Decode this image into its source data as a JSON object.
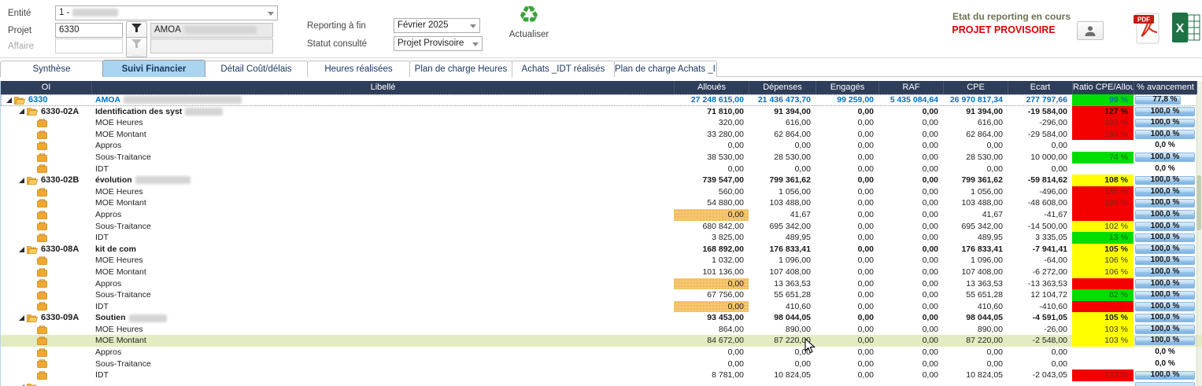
{
  "topbar": {
    "entite_label": "Entité",
    "entite_value": "1 -",
    "projet_label": "Projet",
    "projet_value": "6330",
    "projet_name": "AMOA",
    "affaire_label": "Affaire",
    "reporting_label": "Reporting à fin",
    "reporting_value": "Février 2025",
    "statut_label": "Statut consulté",
    "statut_value": "Projet Provisoire",
    "refresh_label": "Actualiser",
    "status_title": "Etat du reporting en cours",
    "status_value": "PROJET PROVISOIRE",
    "pdf_icon_label": "PDF",
    "excel_icon_label": "X"
  },
  "tabs": [
    {
      "label": "Synthèse",
      "active": false
    },
    {
      "label": "Suivi Financier",
      "active": true
    },
    {
      "label": "Détail Coût/délais",
      "active": false
    },
    {
      "label": "Heures réalisées",
      "active": false
    },
    {
      "label": "Plan de charge Heures",
      "active": false
    },
    {
      "label": "Achats _IDT réalisés",
      "active": false
    },
    {
      "label": "Plan de charge Achats _IDT",
      "active": false
    }
  ],
  "table": {
    "columns": [
      "OI",
      "Libellé",
      "Alloués",
      "Dépenses",
      "Engagés",
      "RAF",
      "CPE",
      "Ecart",
      "Ratio CPE/Alloué",
      "% avancement"
    ],
    "rows": [
      {
        "level": "root",
        "oi": "6330",
        "label": "AMOA",
        "blur": 150,
        "values": [
          "27 248 615,00",
          "21 436 473,70",
          "99 259,00",
          "5 435 084,64",
          "26 970 817,34",
          "277 797,66"
        ],
        "orange": false,
        "ratio": "99 %",
        "ratio_bg": "green",
        "av": "77,8 %",
        "av_pct": 77.8,
        "highlight": false
      },
      {
        "level": "group",
        "oi": "6330-02A",
        "label": "Identification des syst",
        "blur": 48,
        "values": [
          "71 810,00",
          "91 394,00",
          "0,00",
          "0,00",
          "91 394,00",
          "-19 584,00"
        ],
        "orange": false,
        "ratio": "127 %",
        "ratio_bg": "red",
        "av": "100,0 %",
        "av_pct": 100,
        "highlight": false
      },
      {
        "level": "child",
        "oi": "",
        "label": "MOE Heures",
        "blur": 0,
        "values": [
          "320,00",
          "616,00",
          "0,00",
          "0,00",
          "616,00",
          "-296,00"
        ],
        "orange": false,
        "ratio": "193 %",
        "ratio_bg": "red",
        "av": "100,0 %",
        "av_pct": 100,
        "highlight": false
      },
      {
        "level": "child",
        "oi": "",
        "label": "MOE Montant",
        "blur": 0,
        "values": [
          "33 280,00",
          "62 864,00",
          "0,00",
          "0,00",
          "62 864,00",
          "-29 584,00"
        ],
        "orange": false,
        "ratio": "189 %",
        "ratio_bg": "red",
        "av": "100,0 %",
        "av_pct": 100,
        "highlight": false
      },
      {
        "level": "child",
        "oi": "",
        "label": "Appros",
        "blur": 0,
        "values": [
          "0,00",
          "0,00",
          "0,00",
          "0,00",
          "0,00",
          "0,00"
        ],
        "orange": false,
        "ratio": "",
        "ratio_bg": "none",
        "av": "0,0 %",
        "av_pct": 0,
        "highlight": false
      },
      {
        "level": "child",
        "oi": "",
        "label": "Sous-Traitance",
        "blur": 0,
        "values": [
          "38 530,00",
          "28 530,00",
          "0,00",
          "0,00",
          "28 530,00",
          "10 000,00"
        ],
        "orange": false,
        "ratio": "74 %",
        "ratio_bg": "green",
        "av": "100,0 %",
        "av_pct": 100,
        "highlight": false
      },
      {
        "level": "child",
        "oi": "",
        "label": "IDT",
        "blur": 0,
        "values": [
          "0,00",
          "0,00",
          "0,00",
          "0,00",
          "0,00",
          "0,00"
        ],
        "orange": false,
        "ratio": "",
        "ratio_bg": "none",
        "av": "0,0 %",
        "av_pct": 0,
        "highlight": false
      },
      {
        "level": "group",
        "oi": "6330-02B",
        "label": "évolution",
        "blur": 70,
        "values": [
          "739 547,00",
          "799 361,62",
          "0,00",
          "0,00",
          "799 361,62",
          "-59 814,62"
        ],
        "orange": false,
        "ratio": "108 %",
        "ratio_bg": "yellow",
        "av": "100,0 %",
        "av_pct": 100,
        "highlight": false
      },
      {
        "level": "child",
        "oi": "",
        "label": "MOE Heures",
        "blur": 0,
        "values": [
          "560,00",
          "1 056,00",
          "0,00",
          "0,00",
          "1 056,00",
          "-496,00"
        ],
        "orange": false,
        "ratio": "189 %",
        "ratio_bg": "red",
        "av": "100,0 %",
        "av_pct": 100,
        "highlight": false
      },
      {
        "level": "child",
        "oi": "",
        "label": "MOE Montant",
        "blur": 0,
        "values": [
          "54 880,00",
          "103 488,00",
          "0,00",
          "0,00",
          "103 488,00",
          "-48 608,00"
        ],
        "orange": false,
        "ratio": "189 %",
        "ratio_bg": "red",
        "av": "100,0 %",
        "av_pct": 100,
        "highlight": false
      },
      {
        "level": "child",
        "oi": "",
        "label": "Appros",
        "blur": 0,
        "values": [
          "0,00",
          "41,67",
          "0,00",
          "0,00",
          "41,67",
          "-41,67"
        ],
        "orange": true,
        "ratio": "",
        "ratio_bg": "red",
        "av": "100,0 %",
        "av_pct": 100,
        "highlight": false
      },
      {
        "level": "child",
        "oi": "",
        "label": "Sous-Traitance",
        "blur": 0,
        "values": [
          "680 842,00",
          "695 342,00",
          "0,00",
          "0,00",
          "695 342,00",
          "-14 500,00"
        ],
        "orange": false,
        "ratio": "102 %",
        "ratio_bg": "yellow",
        "av": "100,0 %",
        "av_pct": 100,
        "highlight": false
      },
      {
        "level": "child",
        "oi": "",
        "label": "IDT",
        "blur": 0,
        "values": [
          "3 825,00",
          "489,95",
          "0,00",
          "0,00",
          "489,95",
          "3 335,05"
        ],
        "orange": false,
        "ratio": "13 %",
        "ratio_bg": "green",
        "av": "100,0 %",
        "av_pct": 100,
        "highlight": false
      },
      {
        "level": "group",
        "oi": "6330-08A",
        "label": "kit de com",
        "blur": 0,
        "values": [
          "168 892,00",
          "176 833,41",
          "0,00",
          "0,00",
          "176 833,41",
          "-7 941,41"
        ],
        "orange": false,
        "ratio": "105 %",
        "ratio_bg": "yellow",
        "av": "100,0 %",
        "av_pct": 100,
        "highlight": false
      },
      {
        "level": "child",
        "oi": "",
        "label": "MOE Heures",
        "blur": 0,
        "values": [
          "1 032,00",
          "1 096,00",
          "0,00",
          "0,00",
          "1 096,00",
          "-64,00"
        ],
        "orange": false,
        "ratio": "106 %",
        "ratio_bg": "yellow",
        "av": "100,0 %",
        "av_pct": 100,
        "highlight": false
      },
      {
        "level": "child",
        "oi": "",
        "label": "MOE Montant",
        "blur": 0,
        "values": [
          "101 136,00",
          "107 408,00",
          "0,00",
          "0,00",
          "107 408,00",
          "-6 272,00"
        ],
        "orange": false,
        "ratio": "106 %",
        "ratio_bg": "yellow",
        "av": "100,0 %",
        "av_pct": 100,
        "highlight": false
      },
      {
        "level": "child",
        "oi": "",
        "label": "Appros",
        "blur": 0,
        "values": [
          "0,00",
          "13 363,53",
          "0,00",
          "0,00",
          "13 363,53",
          "-13 363,53"
        ],
        "orange": true,
        "ratio": "",
        "ratio_bg": "red",
        "av": "100,0 %",
        "av_pct": 100,
        "highlight": false
      },
      {
        "level": "child",
        "oi": "",
        "label": "Sous-Traitance",
        "blur": 0,
        "values": [
          "67 756,00",
          "55 651,28",
          "0,00",
          "0,00",
          "55 651,28",
          "12 104,72"
        ],
        "orange": false,
        "ratio": "82 %",
        "ratio_bg": "green",
        "av": "100,0 %",
        "av_pct": 100,
        "highlight": false
      },
      {
        "level": "child",
        "oi": "",
        "label": "IDT",
        "blur": 0,
        "values": [
          "0,00",
          "410,60",
          "0,00",
          "0,00",
          "410,60",
          "-410,60"
        ],
        "orange": true,
        "ratio": "",
        "ratio_bg": "red",
        "av": "100,0 %",
        "av_pct": 100,
        "highlight": false
      },
      {
        "level": "group",
        "oi": "6330-09A",
        "label": "Soutien",
        "blur": 48,
        "values": [
          "93 453,00",
          "98 044,05",
          "0,00",
          "0,00",
          "98 044,05",
          "-4 591,05"
        ],
        "orange": false,
        "ratio": "105 %",
        "ratio_bg": "yellow",
        "av": "100,0 %",
        "av_pct": 100,
        "highlight": false
      },
      {
        "level": "child",
        "oi": "",
        "label": "MOE Heures",
        "blur": 0,
        "values": [
          "864,00",
          "890,00",
          "0,00",
          "0,00",
          "890,00",
          "-26,00"
        ],
        "orange": false,
        "ratio": "103 %",
        "ratio_bg": "yellow",
        "av": "100,0 %",
        "av_pct": 100,
        "highlight": false
      },
      {
        "level": "child",
        "oi": "",
        "label": "MOE Montant",
        "blur": 0,
        "values": [
          "84 672,00",
          "87 220,00",
          "0,00",
          "0,00",
          "87 220,00",
          "-2 548,00"
        ],
        "orange": false,
        "ratio": "103 %",
        "ratio_bg": "yellow",
        "av": "100,0 %",
        "av_pct": 100,
        "highlight": true
      },
      {
        "level": "child",
        "oi": "",
        "label": "Appros",
        "blur": 0,
        "values": [
          "0,00",
          "0,00",
          "0,00",
          "0,00",
          "0,00",
          "0,00"
        ],
        "orange": false,
        "ratio": "",
        "ratio_bg": "none",
        "av": "0,0 %",
        "av_pct": 0,
        "highlight": false
      },
      {
        "level": "child",
        "oi": "",
        "label": "Sous-Traitance",
        "blur": 0,
        "values": [
          "0,00",
          "0,00",
          "0,00",
          "0,00",
          "0,00",
          "0,00"
        ],
        "orange": false,
        "ratio": "",
        "ratio_bg": "none",
        "av": "0,0 %",
        "av_pct": 0,
        "highlight": false
      },
      {
        "level": "child",
        "oi": "",
        "label": "IDT",
        "blur": 0,
        "values": [
          "8 781,00",
          "10 824,05",
          "0,00",
          "0,00",
          "10 824,05",
          "-2 043,05"
        ],
        "orange": false,
        "ratio": "123 %",
        "ratio_bg": "red",
        "av": "100,0 %",
        "av_pct": 100,
        "highlight": false
      },
      {
        "level": "group",
        "oi": "",
        "label": "",
        "blur": 0,
        "values": [
          "",
          "",
          "",
          "",
          "",
          ""
        ],
        "orange": false,
        "ratio": "",
        "ratio_bg": "none",
        "av": "",
        "av_pct": 100,
        "highlight": false
      }
    ]
  },
  "colors": {
    "header_navy": "#2e3d59",
    "active_tab_blue": "#a9d5f1",
    "root_text_blue": "#0070c0",
    "ratio_green": "#00dd00",
    "ratio_red": "#f50000",
    "ratio_yellow": "#ffff00",
    "alloue_orange": "#f6c76f",
    "row_highlight": "#e3ebc2",
    "status_red": "#e30000",
    "refresh_green": "#37a437",
    "progress_blue": "#7fb4e2"
  }
}
